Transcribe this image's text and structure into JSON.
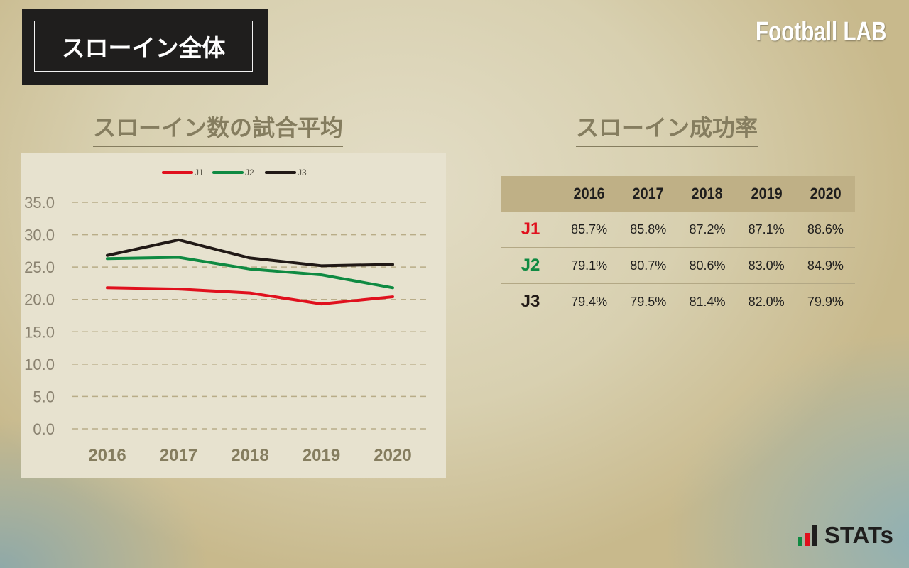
{
  "header": {
    "title": "スローイン全体",
    "brand": "Football LAB"
  },
  "left_section": {
    "title": "スローイン数の試合平均"
  },
  "right_section": {
    "title": "スローイン成功率"
  },
  "chart_data": {
    "type": "line",
    "x": [
      "2016",
      "2017",
      "2018",
      "2019",
      "2020"
    ],
    "y_ticks": [
      "0.0",
      "5.0",
      "10.0",
      "15.0",
      "20.0",
      "25.0",
      "30.0",
      "35.0"
    ],
    "ylim": [
      0,
      35
    ],
    "grid": true,
    "legend_position": "top",
    "series": [
      {
        "name": "J1",
        "color": "#e0101d",
        "values": [
          21.8,
          21.6,
          21.0,
          19.3,
          20.4
        ]
      },
      {
        "name": "J2",
        "color": "#0f8a42",
        "values": [
          26.3,
          26.5,
          24.7,
          23.8,
          21.8
        ]
      },
      {
        "name": "J3",
        "color": "#211916",
        "values": [
          26.8,
          29.2,
          26.4,
          25.2,
          25.4
        ]
      }
    ]
  },
  "table": {
    "headers": [
      "",
      "2016",
      "2017",
      "2018",
      "2019",
      "2020"
    ],
    "rows": [
      {
        "league": "J1",
        "color": "#e0101d",
        "values": [
          "85.7%",
          "85.8%",
          "87.2%",
          "87.1%",
          "88.6%"
        ]
      },
      {
        "league": "J2",
        "color": "#0f8a42",
        "values": [
          "79.1%",
          "80.7%",
          "80.6%",
          "83.0%",
          "84.9%"
        ]
      },
      {
        "league": "J3",
        "color": "#211916",
        "values": [
          "79.4%",
          "79.5%",
          "81.4%",
          "82.0%",
          "79.9%"
        ]
      }
    ]
  },
  "footer": {
    "logo_text": "STATs",
    "logo_colors": [
      "#0f8a42",
      "#e0101d",
      "#1f1e1d"
    ]
  }
}
